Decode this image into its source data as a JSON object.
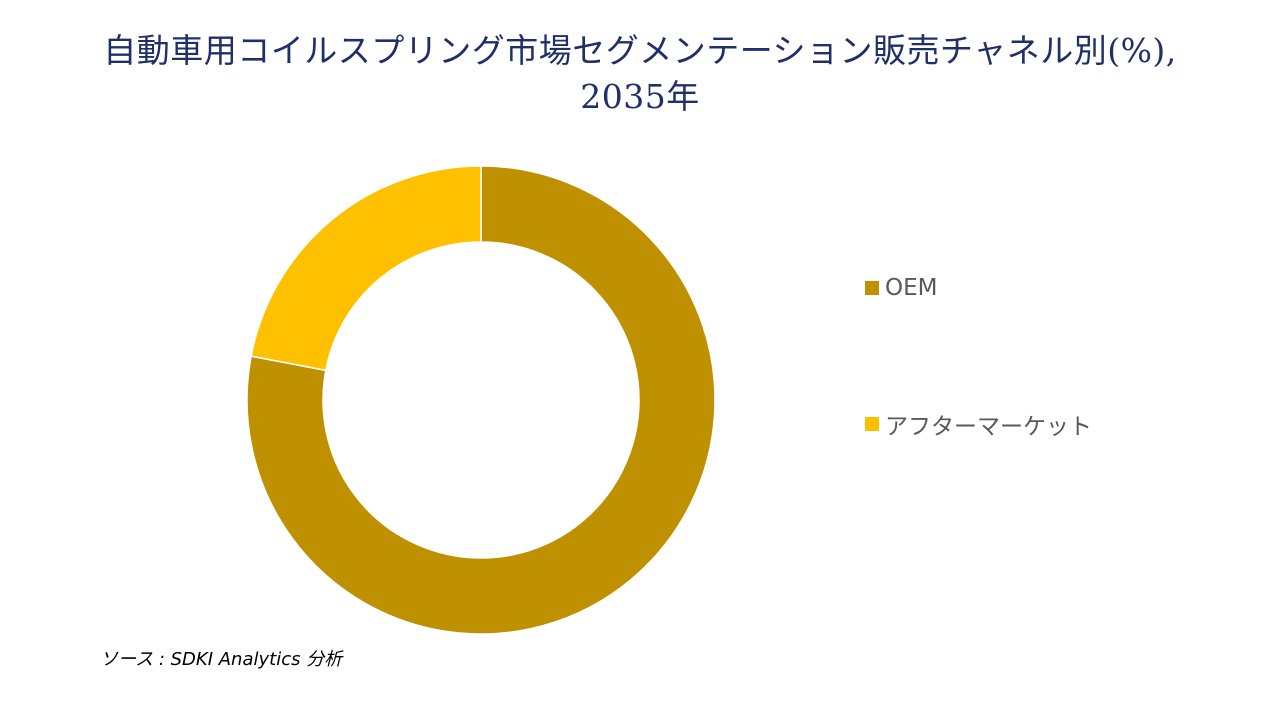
{
  "title": {
    "line1": "自動車用コイルスプリング市場セグメンテーション販売チャネル別(%),",
    "line2": "2035年"
  },
  "source": "ソース : SDKI Analytics 分析",
  "legend": [
    {
      "label": "OEM",
      "color": "#BF9000"
    },
    {
      "label": "アフターマーケット",
      "color": "#FFC000"
    }
  ],
  "chart_data": {
    "type": "pie",
    "subtype": "donut",
    "title": "自動車用コイルスプリング市場セグメンテーション販売チャネル別(%), 2035年",
    "categories": [
      "OEM",
      "アフターマーケット"
    ],
    "values": [
      78,
      22
    ],
    "colors": [
      "#BF9000",
      "#FFC000"
    ],
    "data_labels": false,
    "legend_position": "right",
    "start_angle": 0
  }
}
